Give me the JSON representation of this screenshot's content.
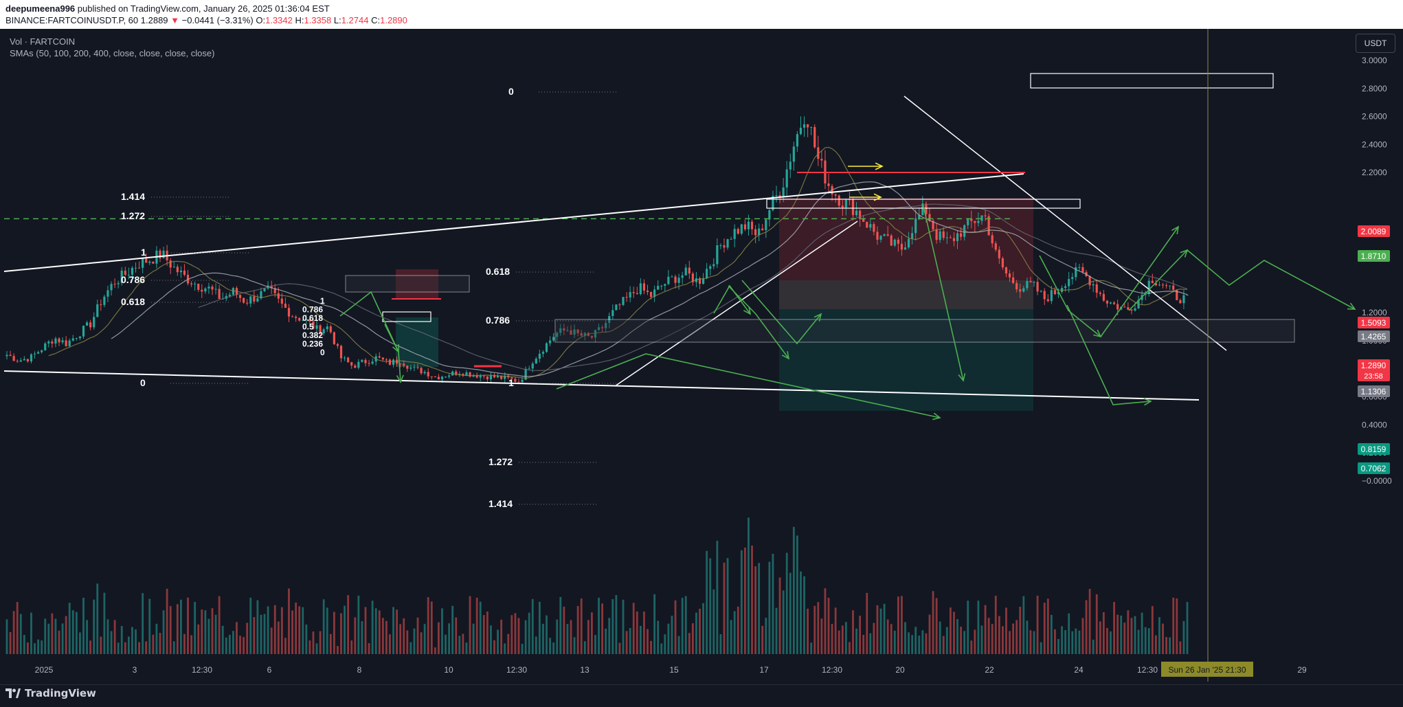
{
  "header": {
    "publisher": "deepumeena996",
    "published_text": "published on TradingView.com, January 26, 2025 01:36:04 EST",
    "symbol": "BINANCE:FARTCOINUSDT.P, 60",
    "last": "1.2889",
    "change_arrow": "▼",
    "change": "−0.0441 (−3.31%)",
    "o_label": "O:",
    "o": "1.3342",
    "h_label": "H:",
    "h": "1.3358",
    "l_label": "L:",
    "l": "1.2744",
    "c_label": "C:",
    "c": "1.2890"
  },
  "legend": {
    "volume": "Vol · FARTCOIN",
    "smas": "SMAs (50, 100, 200, 400, close, close, close, close)"
  },
  "currency": "USDT",
  "footer": {
    "brand": "TradingView",
    "logo_icon": "tradingview-logo-icon"
  },
  "colors": {
    "bg": "#131722",
    "up": "#26a69a",
    "down": "#ef5350",
    "annotation_green": "#4caf50",
    "white": "#ffffff",
    "yellow": "#ffeb3b"
  },
  "chart_data": {
    "type": "candlestick",
    "symbol": "BINANCE:FARTCOINUSDT.P",
    "interval": "60",
    "price_axis": {
      "ticks": [
        3.0,
        2.8,
        2.6,
        2.4,
        2.2,
        1.8,
        1.6,
        1.2,
        1.0,
        0.6,
        0.4,
        0.2,
        -0.0
      ],
      "tick_labels": [
        "3.0000",
        "2.8000",
        "2.6000",
        "2.4000",
        "2.2000",
        "1.8000",
        "1.6000",
        "1.2000",
        "1.0000",
        "0.6000",
        "0.4000",
        "0.2000",
        "−0.0000"
      ],
      "range": [
        -0.1,
        3.3
      ]
    },
    "time_axis": {
      "labels": [
        "2025",
        "3",
        "12:30",
        "6",
        "8",
        "10",
        "12:30",
        "13",
        "15",
        "17",
        "12:30",
        "20",
        "22",
        "24",
        "12:30",
        "29"
      ],
      "crosshair_label": "Sun 26 Jan '25   21:30"
    },
    "price_badges": [
      {
        "value": "2.0089",
        "color": "#f23645"
      },
      {
        "value": "1.8710",
        "color": "#4caf50"
      },
      {
        "value": "1.5093",
        "color": "#f23645"
      },
      {
        "value": "1.4265",
        "color": "#787b86"
      },
      {
        "value": "1.2890",
        "sub": "23:58",
        "color": "#f23645"
      },
      {
        "value": "1.1306",
        "color": "#787b86"
      },
      {
        "value": "0.8159",
        "color": "#089981"
      },
      {
        "value": "0.7062",
        "color": "#089981"
      }
    ],
    "horizontal_dashed_line": 1.871,
    "fib_labels": [
      {
        "text": "1.414",
        "price": 2.0
      },
      {
        "text": "1.272",
        "price": 1.871
      },
      {
        "text": "1",
        "price": 1.62
      },
      {
        "text": "0.786",
        "price": 1.43
      },
      {
        "text": "0.618",
        "price": 1.27
      },
      {
        "text": "0",
        "price": 0.67
      },
      {
        "text": "0",
        "price": 2.77
      },
      {
        "text": "0.618",
        "price": 1.53
      },
      {
        "text": "0.786",
        "price": 1.15
      },
      {
        "text": "1",
        "price": 0.68
      },
      {
        "text": "1.272",
        "price": 0.05
      },
      {
        "text": "1.414",
        "price": -0.2
      }
    ],
    "mini_fib_labels": [
      "1",
      "0.786",
      "0.618",
      "0.5",
      "0.382",
      "0.236",
      "0"
    ],
    "close_series": [
      0.9,
      0.86,
      0.88,
      0.95,
      1.02,
      0.98,
      1.05,
      1.12,
      1.3,
      1.42,
      1.48,
      1.55,
      1.58,
      1.62,
      1.52,
      1.45,
      1.4,
      1.37,
      1.3,
      1.35,
      1.28,
      1.32,
      1.36,
      1.26,
      1.18,
      1.15,
      1.08,
      1.1,
      0.88,
      0.82,
      0.85,
      0.88,
      0.84,
      0.86,
      0.8,
      0.78,
      0.74,
      0.76,
      0.78,
      0.76,
      0.75,
      0.74,
      0.73,
      0.71,
      0.85,
      0.95,
      1.05,
      1.08,
      1.04,
      1.02,
      1.1,
      1.22,
      1.3,
      1.38,
      1.32,
      1.4,
      1.45,
      1.48,
      1.42,
      1.55,
      1.7,
      1.78,
      1.82,
      1.75,
      1.95,
      2.1,
      2.4,
      2.65,
      2.3,
      2.1,
      2.0,
      1.95,
      1.85,
      1.75,
      1.7,
      1.65,
      1.82,
      1.95,
      1.75,
      1.7,
      1.78,
      1.85,
      1.9,
      1.6,
      1.45,
      1.38,
      1.4,
      1.3,
      1.35,
      1.45,
      1.5,
      1.42,
      1.3,
      1.25,
      1.22,
      1.3,
      1.45,
      1.4,
      1.32,
      1.29
    ]
  }
}
